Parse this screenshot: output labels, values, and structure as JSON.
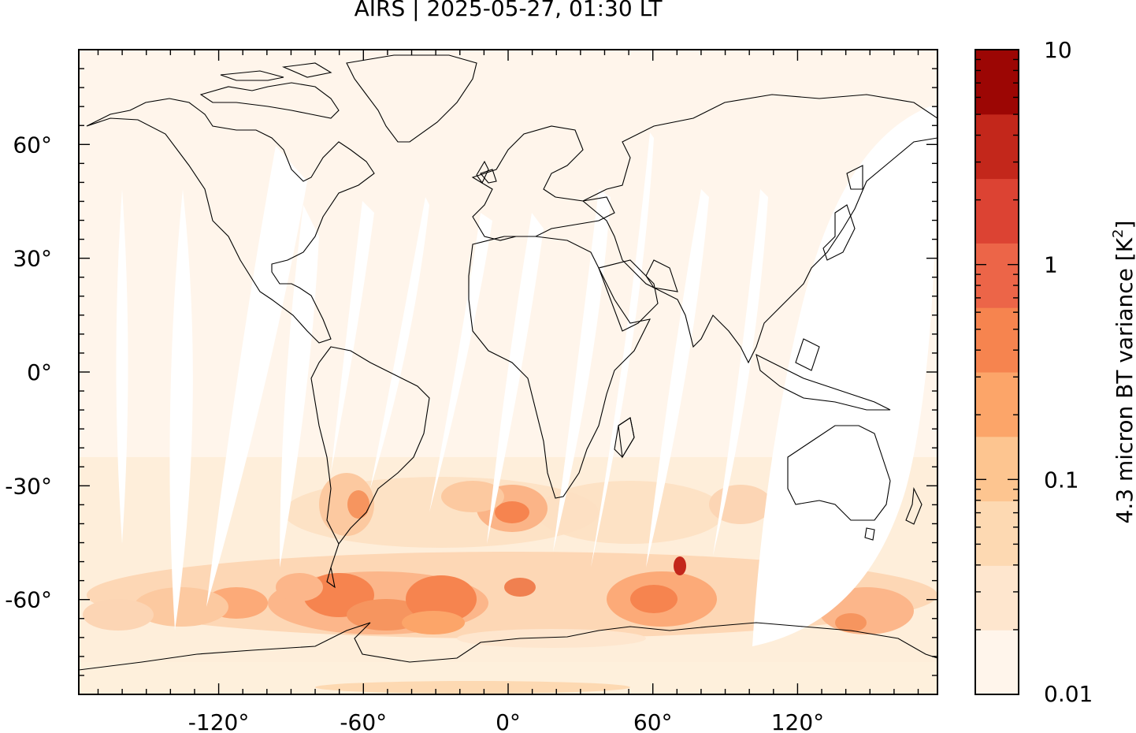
{
  "title": "AIRS | 2025-05-27, 01:30 LT",
  "map": {
    "lat_ticks": [
      "60°",
      "30°",
      "0°",
      "-30°",
      "-60°"
    ],
    "lon_ticks": [
      "-120°",
      "-60°",
      "0°",
      "60°",
      "120°"
    ],
    "lon_range": [
      -178,
      178
    ],
    "lat_range": [
      -85,
      85
    ],
    "orbit_gaps_note_color": "#ffffff"
  },
  "colorbar": {
    "label_prefix": "4.3 micron BT variance [K",
    "label_sup": "2",
    "label_suffix": "]",
    "ticks": [
      "10",
      "1",
      "0.1",
      "0.01"
    ],
    "scale": "log",
    "range": [
      0.01,
      10
    ],
    "colors": [
      "#fff5eb",
      "#fee6ce",
      "#fdd9b2",
      "#fdc590",
      "#fca569",
      "#f6844f",
      "#ec6548",
      "#dc4333",
      "#c3271b",
      "#9c0604"
    ]
  }
}
